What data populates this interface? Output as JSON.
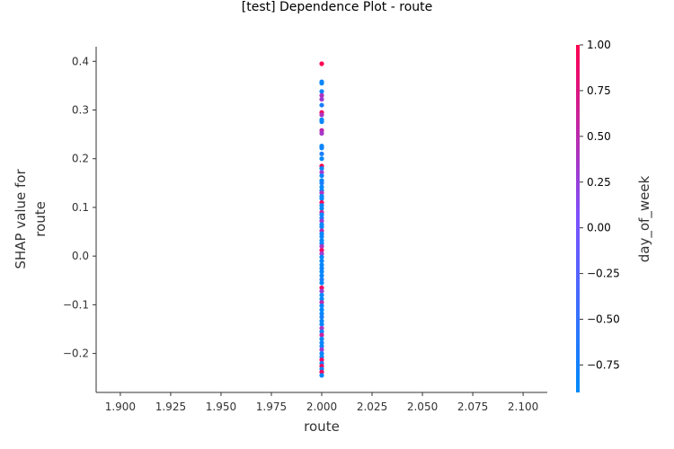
{
  "chart_data": {
    "type": "scatter",
    "title": "[test] Dependence Plot - route",
    "xlabel": "route",
    "ylabel_lines": [
      "SHAP value for",
      "route"
    ],
    "xlim": [
      1.888,
      2.112
    ],
    "ylim": [
      -0.28,
      0.43
    ],
    "xticks": [
      1.9,
      1.925,
      1.95,
      1.975,
      2.0,
      2.025,
      2.05,
      2.075,
      2.1
    ],
    "xtick_labels": [
      "1.900",
      "1.925",
      "1.950",
      "1.975",
      "2.000",
      "2.025",
      "2.050",
      "2.075",
      "2.100"
    ],
    "yticks": [
      -0.2,
      -0.1,
      0.0,
      0.1,
      0.2,
      0.3,
      0.4
    ],
    "ytick_labels": [
      "−0.2",
      "−0.1",
      "0.0",
      "0.1",
      "0.2",
      "0.3",
      "0.4"
    ],
    "grid": false,
    "colorbar": {
      "label": "day_of_week",
      "range": [
        -0.9,
        1.0
      ],
      "ticks": [
        1.0,
        0.75,
        0.5,
        0.25,
        0.0,
        -0.25,
        -0.5,
        -0.75
      ],
      "tick_labels": [
        "1.00",
        "0.75",
        "0.50",
        "0.25",
        "0.00",
        "−0.25",
        "−0.50",
        "−0.75"
      ],
      "color_low": "#008afb",
      "color_mid": "#7c52ff",
      "color_high": "#ff0052"
    },
    "points": [
      {
        "x": 2.0,
        "y": 0.395,
        "c": 1.0
      },
      {
        "x": 2.0,
        "y": 0.358,
        "c": -0.85
      },
      {
        "x": 2.0,
        "y": 0.355,
        "c": -0.85
      },
      {
        "x": 2.0,
        "y": 0.338,
        "c": -0.8
      },
      {
        "x": 2.0,
        "y": 0.33,
        "c": 0.4
      },
      {
        "x": 2.0,
        "y": 0.322,
        "c": 0.3
      },
      {
        "x": 2.0,
        "y": 0.31,
        "c": -0.7
      },
      {
        "x": 2.0,
        "y": 0.295,
        "c": 0.9
      },
      {
        "x": 2.0,
        "y": 0.29,
        "c": 0.4
      },
      {
        "x": 2.0,
        "y": 0.28,
        "c": -0.85
      },
      {
        "x": 2.0,
        "y": 0.276,
        "c": -0.85
      },
      {
        "x": 2.0,
        "y": 0.258,
        "c": 0.5
      },
      {
        "x": 2.0,
        "y": 0.252,
        "c": 0.35
      },
      {
        "x": 2.0,
        "y": 0.226,
        "c": -0.85
      },
      {
        "x": 2.0,
        "y": 0.222,
        "c": -0.8
      },
      {
        "x": 2.0,
        "y": 0.21,
        "c": -0.7
      },
      {
        "x": 2.0,
        "y": 0.2,
        "c": -0.85
      },
      {
        "x": 2.0,
        "y": 0.185,
        "c": 1.0
      },
      {
        "x": 2.0,
        "y": 0.18,
        "c": -0.85
      },
      {
        "x": 2.0,
        "y": 0.172,
        "c": 0.3
      },
      {
        "x": 2.0,
        "y": 0.165,
        "c": -0.8
      },
      {
        "x": 2.0,
        "y": 0.155,
        "c": -0.85
      },
      {
        "x": 2.0,
        "y": 0.15,
        "c": -0.7
      },
      {
        "x": 2.0,
        "y": 0.142,
        "c": -0.85
      },
      {
        "x": 2.0,
        "y": 0.135,
        "c": -0.85
      },
      {
        "x": 2.0,
        "y": 0.13,
        "c": 0.4
      },
      {
        "x": 2.0,
        "y": 0.123,
        "c": -0.85
      },
      {
        "x": 2.0,
        "y": 0.118,
        "c": -0.85
      },
      {
        "x": 2.0,
        "y": 0.11,
        "c": 0.95
      },
      {
        "x": 2.0,
        "y": 0.104,
        "c": -0.8
      },
      {
        "x": 2.0,
        "y": 0.098,
        "c": -0.85
      },
      {
        "x": 2.0,
        "y": 0.09,
        "c": 0.6
      },
      {
        "x": 2.0,
        "y": 0.085,
        "c": -0.85
      },
      {
        "x": 2.0,
        "y": 0.078,
        "c": -0.7
      },
      {
        "x": 2.0,
        "y": 0.072,
        "c": 0.3
      },
      {
        "x": 2.0,
        "y": 0.065,
        "c": -0.85
      },
      {
        "x": 2.0,
        "y": 0.06,
        "c": -0.85
      },
      {
        "x": 2.0,
        "y": 0.052,
        "c": 0.5
      },
      {
        "x": 2.0,
        "y": 0.046,
        "c": -0.85
      },
      {
        "x": 2.0,
        "y": 0.04,
        "c": -0.8
      },
      {
        "x": 2.0,
        "y": 0.032,
        "c": -0.85
      },
      {
        "x": 2.0,
        "y": 0.026,
        "c": -0.85
      },
      {
        "x": 2.0,
        "y": 0.02,
        "c": 0.4
      },
      {
        "x": 2.0,
        "y": 0.012,
        "c": 0.9
      },
      {
        "x": 2.0,
        "y": 0.005,
        "c": 0.3
      },
      {
        "x": 2.0,
        "y": -0.002,
        "c": -0.85
      },
      {
        "x": 2.0,
        "y": -0.01,
        "c": -0.85
      },
      {
        "x": 2.0,
        "y": -0.018,
        "c": -0.85
      },
      {
        "x": 2.0,
        "y": -0.025,
        "c": -0.8
      },
      {
        "x": 2.0,
        "y": -0.032,
        "c": -0.85
      },
      {
        "x": 2.0,
        "y": -0.04,
        "c": -0.85
      },
      {
        "x": 2.0,
        "y": -0.048,
        "c": -0.7
      },
      {
        "x": 2.0,
        "y": -0.055,
        "c": -0.85
      },
      {
        "x": 2.0,
        "y": -0.065,
        "c": 0.9
      },
      {
        "x": 2.0,
        "y": -0.072,
        "c": 0.3
      },
      {
        "x": 2.0,
        "y": -0.08,
        "c": -0.85
      },
      {
        "x": 2.0,
        "y": -0.088,
        "c": -0.85
      },
      {
        "x": 2.0,
        "y": -0.095,
        "c": 0.5
      },
      {
        "x": 2.0,
        "y": -0.102,
        "c": -0.8
      },
      {
        "x": 2.0,
        "y": -0.11,
        "c": -0.85
      },
      {
        "x": 2.0,
        "y": -0.118,
        "c": -0.85
      },
      {
        "x": 2.0,
        "y": -0.125,
        "c": -0.7
      },
      {
        "x": 2.0,
        "y": -0.133,
        "c": -0.85
      },
      {
        "x": 2.0,
        "y": -0.14,
        "c": -0.85
      },
      {
        "x": 2.0,
        "y": -0.148,
        "c": 0.4
      },
      {
        "x": 2.0,
        "y": -0.155,
        "c": -0.85
      },
      {
        "x": 2.0,
        "y": -0.162,
        "c": 0.6
      },
      {
        "x": 2.0,
        "y": -0.17,
        "c": -0.85
      },
      {
        "x": 2.0,
        "y": -0.178,
        "c": -0.8
      },
      {
        "x": 2.0,
        "y": -0.185,
        "c": -0.85
      },
      {
        "x": 2.0,
        "y": -0.192,
        "c": 0.3
      },
      {
        "x": 2.0,
        "y": -0.2,
        "c": -0.85
      },
      {
        "x": 2.0,
        "y": -0.207,
        "c": -0.85
      },
      {
        "x": 2.0,
        "y": -0.213,
        "c": 0.9
      },
      {
        "x": 2.0,
        "y": -0.22,
        "c": -0.7
      },
      {
        "x": 2.0,
        "y": -0.226,
        "c": 0.95
      },
      {
        "x": 2.0,
        "y": -0.232,
        "c": -0.85
      },
      {
        "x": 2.0,
        "y": -0.238,
        "c": 0.9
      },
      {
        "x": 2.0,
        "y": -0.245,
        "c": -0.85
      }
    ]
  }
}
